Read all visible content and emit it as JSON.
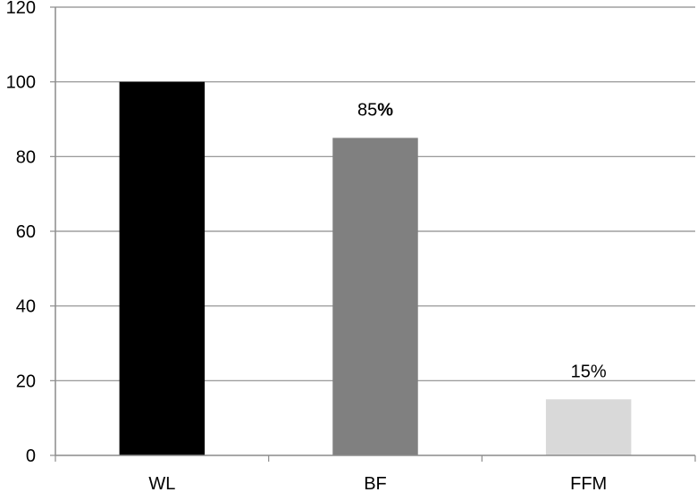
{
  "chart_data": {
    "type": "bar",
    "title": "",
    "xlabel": "",
    "ylabel": "",
    "categories": [
      "WL",
      "BF",
      "FFM"
    ],
    "values": [
      100,
      85,
      15
    ],
    "colors": [
      "#000000",
      "#808080",
      "#d9d9d9"
    ],
    "data_labels": [
      null,
      {
        "number": "85",
        "suffix": "%"
      },
      {
        "number": "15",
        "suffix": "%"
      }
    ],
    "ylim": [
      0,
      120
    ],
    "yticks": [
      "0",
      "20",
      "40",
      "60",
      "80",
      "100",
      "120"
    ],
    "grid": true,
    "legend": "none"
  }
}
